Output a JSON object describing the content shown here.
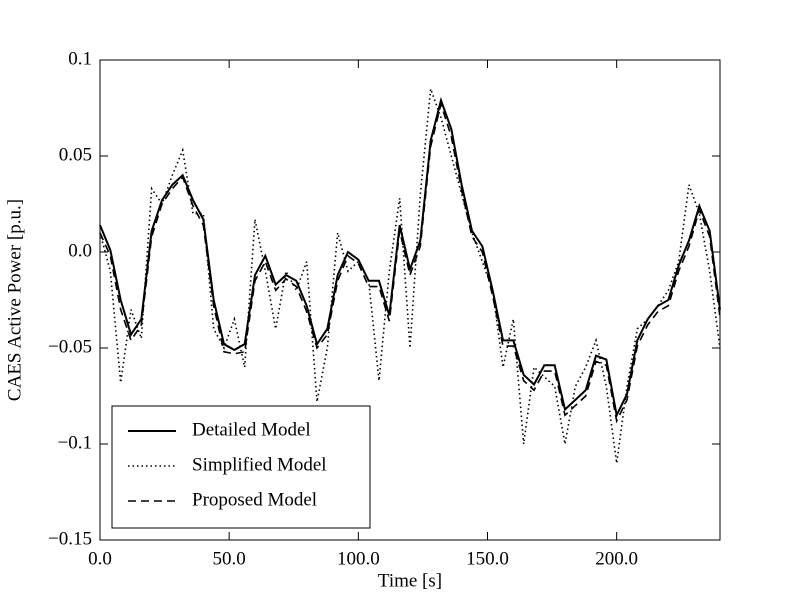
{
  "chart_data": {
    "type": "line",
    "xlabel": "Time [s]",
    "ylabel": "CAES Active Power [p.u.]",
    "x": [
      0,
      4,
      8,
      12,
      16,
      20,
      24,
      28,
      32,
      36,
      40,
      44,
      48,
      52,
      56,
      60,
      64,
      68,
      72,
      76,
      80,
      84,
      88,
      92,
      96,
      100,
      104,
      108,
      112,
      116,
      120,
      124,
      128,
      132,
      136,
      140,
      144,
      148,
      152,
      156,
      160,
      164,
      168,
      172,
      176,
      180,
      184,
      188,
      192,
      196,
      200,
      204,
      208,
      212,
      216,
      220,
      224,
      228,
      232,
      236,
      240
    ],
    "series": [
      {
        "name": "Detailed Model",
        "color": "#000000",
        "linestyle": "solid",
        "values": [
          0.014,
          0.001,
          -0.025,
          -0.043,
          -0.035,
          0.011,
          0.027,
          0.035,
          0.04,
          0.027,
          0.017,
          -0.025,
          -0.048,
          -0.051,
          -0.048,
          -0.012,
          -0.002,
          -0.017,
          -0.012,
          -0.015,
          -0.028,
          -0.048,
          -0.04,
          -0.012,
          0.0,
          -0.004,
          -0.015,
          -0.015,
          -0.033,
          0.014,
          -0.009,
          0.006,
          0.058,
          0.079,
          0.064,
          0.035,
          0.011,
          0.003,
          -0.02,
          -0.046,
          -0.046,
          -0.064,
          -0.069,
          -0.059,
          -0.059,
          -0.082,
          -0.077,
          -0.072,
          -0.054,
          -0.056,
          -0.085,
          -0.074,
          -0.046,
          -0.035,
          -0.028,
          -0.025,
          -0.007,
          0.006,
          0.024,
          0.011,
          -0.03
        ]
      },
      {
        "name": "Simplified Model",
        "color": "#000000",
        "linestyle": "dotted",
        "values": [
          0.01,
          -0.01,
          -0.068,
          -0.03,
          -0.045,
          0.033,
          0.025,
          0.04,
          0.053,
          0.02,
          0.02,
          -0.04,
          -0.05,
          -0.035,
          -0.06,
          0.017,
          -0.01,
          -0.04,
          -0.01,
          -0.02,
          -0.005,
          -0.078,
          -0.05,
          0.01,
          -0.01,
          -0.005,
          -0.015,
          -0.067,
          -0.01,
          0.028,
          -0.05,
          0.03,
          0.085,
          0.07,
          0.05,
          0.03,
          0.01,
          -0.005,
          -0.02,
          -0.06,
          -0.035,
          -0.1,
          -0.06,
          -0.065,
          -0.07,
          -0.1,
          -0.07,
          -0.06,
          -0.046,
          -0.07,
          -0.11,
          -0.07,
          -0.04,
          -0.035,
          -0.028,
          -0.02,
          -0.005,
          0.035,
          0.02,
          -0.01,
          -0.05
        ]
      },
      {
        "name": "Proposed Model",
        "color": "#000000",
        "linestyle": "dashed",
        "values": [
          0.01,
          -0.002,
          -0.03,
          -0.046,
          -0.038,
          0.008,
          0.025,
          0.033,
          0.039,
          0.024,
          0.014,
          -0.028,
          -0.052,
          -0.053,
          -0.052,
          -0.015,
          -0.005,
          -0.02,
          -0.014,
          -0.018,
          -0.031,
          -0.05,
          -0.043,
          -0.015,
          -0.002,
          -0.006,
          -0.018,
          -0.018,
          -0.036,
          0.011,
          -0.012,
          0.003,
          0.055,
          0.077,
          0.06,
          0.032,
          0.008,
          0.0,
          -0.023,
          -0.049,
          -0.049,
          -0.067,
          -0.072,
          -0.062,
          -0.062,
          -0.085,
          -0.08,
          -0.075,
          -0.057,
          -0.059,
          -0.088,
          -0.077,
          -0.049,
          -0.038,
          -0.031,
          -0.028,
          -0.01,
          0.003,
          0.022,
          0.008,
          -0.034
        ]
      }
    ],
    "xlim": [
      0,
      240
    ],
    "xticks": [
      {
        "value": 0,
        "label": "0.0"
      },
      {
        "value": 50,
        "label": "50.0"
      },
      {
        "value": 100,
        "label": "100.0"
      },
      {
        "value": 150,
        "label": "150.0"
      },
      {
        "value": 200,
        "label": "200.0"
      }
    ],
    "ylim": [
      -0.15,
      0.1
    ],
    "yticks": [
      {
        "value": -0.15,
        "label": "−0.15"
      },
      {
        "value": -0.1,
        "label": "−0.1"
      },
      {
        "value": -0.05,
        "label": "−0.05"
      },
      {
        "value": 0,
        "label": "0.0"
      },
      0.05,
      0.1
    ],
    "grid": false,
    "legend": "lower left"
  }
}
